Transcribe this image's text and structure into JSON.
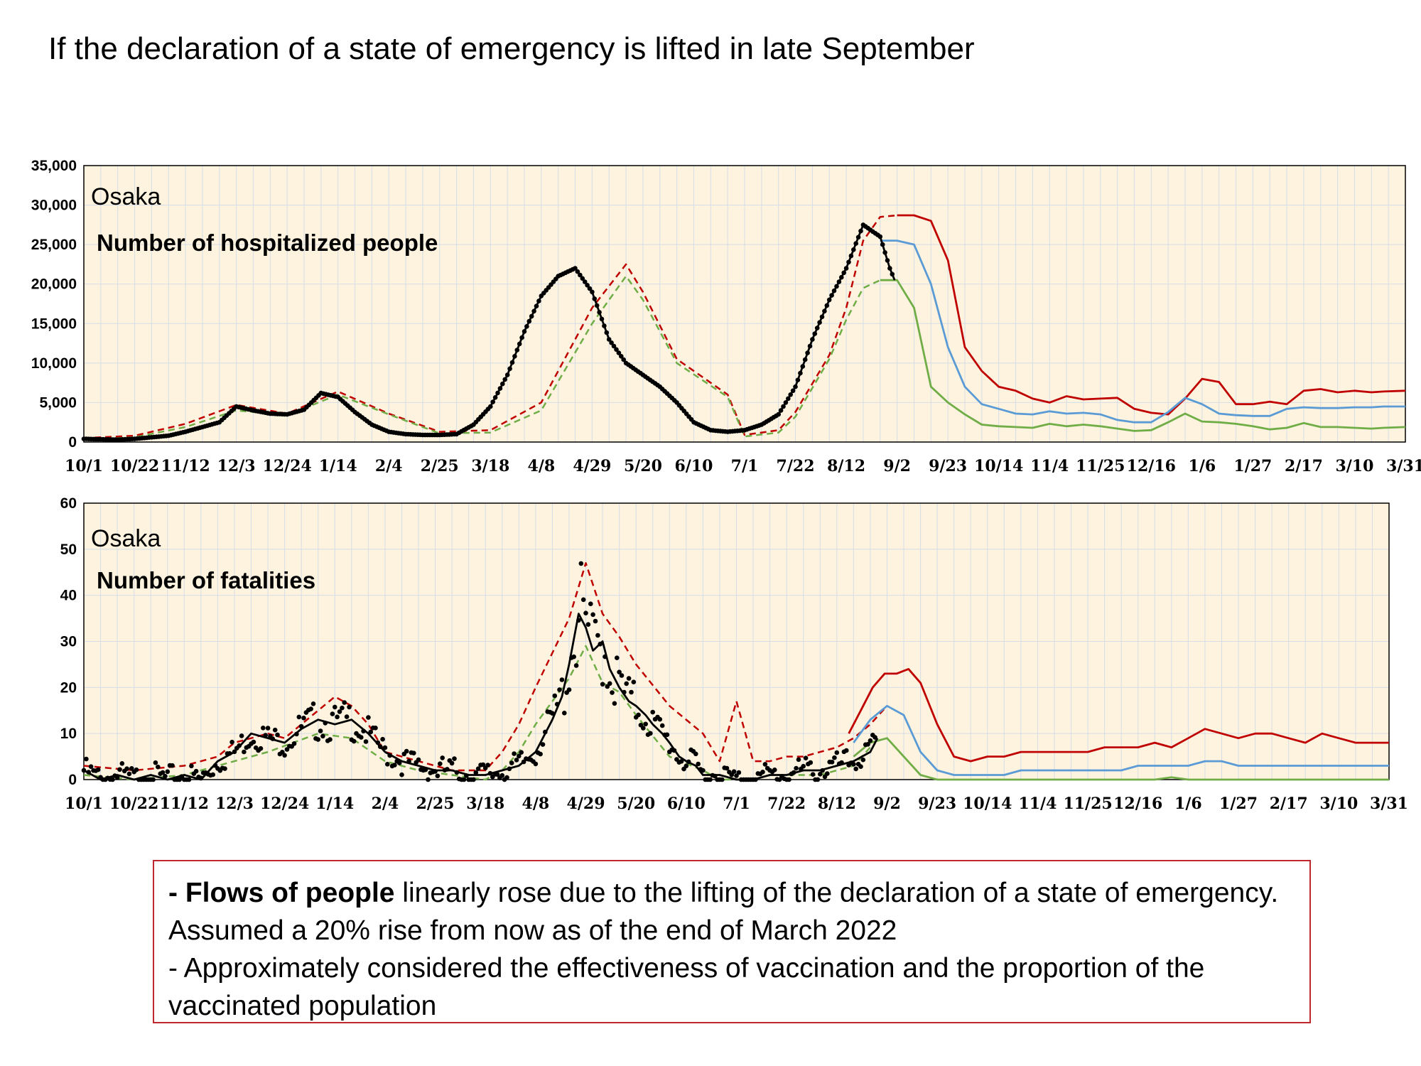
{
  "title": "If the declaration of a state of emergency is lifted in late September",
  "colors": {
    "red": "#c00000",
    "blue": "#5b9bd5",
    "green": "#70ad47",
    "black": "#000000",
    "plot_bg": "#fdf3df",
    "grid": "#d6dde6"
  },
  "chart_data": [
    {
      "type": "line",
      "region": "Osaka",
      "subtitle": "Number of hospitalized people",
      "ylim": [
        0,
        35000
      ],
      "yticks": [
        "35,000",
        "30,000",
        "25,000",
        "20,000",
        "15,000",
        "10,000",
        "5,000",
        "0"
      ],
      "xticks": [
        "10/1",
        "10/22",
        "11/12",
        "12/3",
        "12/24",
        "1/14",
        "2/4",
        "2/25",
        "3/18",
        "4/8",
        "4/29",
        "5/20",
        "6/10",
        "7/1",
        "7/22",
        "8/12",
        "9/2",
        "9/23",
        "10/14",
        "11/4",
        "11/25",
        "12/16",
        "1/6",
        "1/27",
        "2/17",
        "3/10",
        "3/31"
      ],
      "grid": true,
      "series": [
        {
          "style": "red-dashed",
          "days": [
            0,
            21,
            42,
            63,
            84,
            105,
            126,
            147,
            168,
            189,
            210,
            224,
            231,
            245,
            266,
            273,
            287,
            294,
            308,
            315,
            322,
            329,
            336
          ],
          "values": [
            500,
            800,
            2300,
            4700,
            3600,
            6400,
            3600,
            1300,
            1500,
            5000,
            17000,
            22500,
            19000,
            10500,
            6000,
            900,
            1500,
            3800,
            11000,
            17000,
            25500,
            28500,
            28700
          ]
        },
        {
          "style": "green-dashed",
          "days": [
            0,
            21,
            42,
            63,
            84,
            105,
            126,
            147,
            168,
            189,
            210,
            224,
            231,
            245,
            266,
            273,
            287,
            294,
            308,
            315,
            322,
            329,
            336
          ],
          "values": [
            300,
            600,
            1900,
            4000,
            3400,
            6000,
            3500,
            1100,
            1200,
            4000,
            15000,
            21000,
            18000,
            10000,
            5700,
            700,
            1200,
            3200,
            10500,
            15500,
            19500,
            20500,
            20500
          ]
        },
        {
          "style": "red-solid",
          "days": [
            336,
            343,
            350,
            357,
            364,
            371,
            378,
            385,
            392,
            399,
            406,
            413,
            420,
            427,
            434,
            441,
            448,
            455,
            462,
            469,
            476,
            483,
            490,
            497,
            504,
            511,
            518,
            525,
            532,
            537,
            546
          ],
          "values": [
            28700,
            28700,
            28000,
            23000,
            12000,
            9000,
            7000,
            6500,
            5500,
            5000,
            5800,
            5400,
            5500,
            5600,
            4200,
            3700,
            3500,
            5500,
            8000,
            7600,
            4800,
            4800,
            5100,
            4800,
            6500,
            6700,
            6300,
            6500,
            6300,
            6400,
            6500
          ]
        },
        {
          "style": "blue-solid",
          "days": [
            329,
            336,
            343,
            350,
            357,
            364,
            371,
            378,
            385,
            392,
            399,
            406,
            413,
            420,
            427,
            434,
            441,
            448,
            455,
            462,
            469,
            476,
            483,
            490,
            497,
            504,
            511,
            518,
            525,
            532,
            537,
            546
          ],
          "values": [
            25500,
            25500,
            25000,
            20000,
            12000,
            7000,
            4800,
            4200,
            3600,
            3500,
            3900,
            3600,
            3700,
            3500,
            2800,
            2500,
            2500,
            3800,
            5600,
            4800,
            3600,
            3400,
            3300,
            3300,
            4200,
            4400,
            4300,
            4300,
            4400,
            4400,
            4500,
            4500
          ]
        },
        {
          "style": "green-solid",
          "days": [
            329,
            336,
            343,
            350,
            357,
            364,
            371,
            378,
            385,
            392,
            399,
            406,
            413,
            420,
            427,
            434,
            441,
            448,
            455,
            462,
            469,
            476,
            483,
            490,
            497,
            504,
            511,
            518,
            525,
            532,
            537,
            546
          ],
          "values": [
            20500,
            20500,
            17000,
            7000,
            5000,
            3500,
            2200,
            2000,
            1900,
            1800,
            2300,
            2000,
            2200,
            2000,
            1700,
            1400,
            1500,
            2500,
            3600,
            2600,
            2500,
            2300,
            2000,
            1600,
            1800,
            2400,
            1900,
            1900,
            1800,
            1700,
            1800,
            1900
          ]
        },
        {
          "style": "black-solid",
          "days": [
            0,
            14,
            21,
            35,
            42,
            56,
            63,
            70,
            77,
            84,
            91,
            98,
            105,
            112,
            119,
            126,
            133,
            140,
            147,
            154,
            161,
            168,
            175,
            182,
            189,
            196,
            203,
            210,
            217,
            224,
            231,
            238,
            245,
            252,
            259,
            266,
            273,
            280,
            287,
            294,
            301,
            308,
            315,
            322,
            329,
            331,
            333,
            335
          ],
          "values": [
            400,
            300,
            400,
            800,
            1300,
            2500,
            4500,
            4000,
            3600,
            3500,
            4100,
            6200,
            5700,
            3800,
            2200,
            1300,
            1000,
            900,
            900,
            1000,
            2200,
            4500,
            8500,
            14000,
            18500,
            21000,
            22000,
            19000,
            13000,
            10000,
            8500,
            7000,
            5000,
            2500,
            1500,
            1300,
            1500,
            2200,
            3500,
            7000,
            13000,
            18000,
            22000,
            27500,
            26000,
            24000,
            22000,
            20500
          ]
        }
      ]
    },
    {
      "type": "line",
      "region": "Osaka",
      "subtitle": "Number of fatalities",
      "ylim": [
        0,
        60
      ],
      "yticks": [
        "60",
        "50",
        "40",
        "30",
        "20",
        "10",
        "0"
      ],
      "xticks": [
        "10/1",
        "10/22",
        "11/12",
        "12/3",
        "12/24",
        "1/14",
        "2/4",
        "2/25",
        "3/18",
        "4/8",
        "4/29",
        "5/20",
        "6/10",
        "7/1",
        "7/22",
        "8/12",
        "9/2",
        "9/23",
        "10/14",
        "11/4",
        "11/25",
        "12/16",
        "1/6",
        "1/27",
        "2/17",
        "3/10",
        "3/31"
      ],
      "grid": true,
      "series": [
        {
          "style": "red-dashed",
          "days": [
            0,
            21,
            42,
            56,
            63,
            70,
            77,
            84,
            91,
            98,
            105,
            112,
            119,
            126,
            140,
            154,
            168,
            175,
            182,
            189,
            203,
            210,
            217,
            224,
            231,
            245,
            259,
            266,
            273,
            280,
            287,
            294,
            301,
            308,
            315,
            322,
            329,
            336
          ],
          "values": [
            3,
            2,
            3,
            5,
            8,
            9,
            10,
            9,
            12,
            15,
            18,
            16,
            12,
            6,
            4,
            2,
            2,
            6,
            12,
            20,
            35,
            47,
            36,
            31,
            25,
            16,
            10,
            4,
            17,
            4,
            4,
            5,
            5,
            6,
            7,
            9,
            12,
            16
          ]
        },
        {
          "style": "green-dashed",
          "days": [
            0,
            21,
            42,
            63,
            77,
            98,
            112,
            126,
            140,
            154,
            168,
            175,
            182,
            189,
            203,
            210,
            217,
            224,
            231,
            245,
            259,
            266,
            273,
            280,
            287,
            294,
            301,
            308,
            315,
            322,
            329
          ],
          "values": [
            1,
            0,
            1,
            4,
            6,
            10,
            9,
            4,
            2,
            1,
            0,
            2,
            6,
            12,
            22,
            29,
            21,
            19,
            14,
            5,
            2,
            0,
            0,
            0,
            1,
            1,
            1,
            1,
            2,
            3,
            7
          ]
        },
        {
          "style": "red-solid",
          "days": [
            320,
            325,
            330,
            335,
            340,
            345,
            350,
            357,
            364,
            371,
            378,
            385,
            392,
            399,
            406,
            413,
            420,
            427,
            434,
            441,
            448,
            455,
            462,
            469,
            476,
            483,
            490,
            497,
            504,
            511,
            518,
            525,
            532,
            537,
            546
          ],
          "values": [
            10,
            15,
            20,
            23,
            23,
            24,
            21,
            12,
            5,
            4,
            5,
            5,
            6,
            6,
            6,
            6,
            6,
            7,
            7,
            7,
            8,
            7,
            9,
            11,
            10,
            9,
            10,
            10,
            9,
            8,
            10,
            9,
            8,
            8,
            8
          ]
        },
        {
          "style": "blue-solid",
          "days": [
            322,
            329,
            336,
            343,
            350,
            357,
            364,
            371,
            378,
            385,
            392,
            399,
            406,
            413,
            420,
            427,
            434,
            441,
            448,
            455,
            462,
            469,
            476,
            483,
            490,
            497,
            504,
            511,
            518,
            525,
            532,
            537,
            546
          ],
          "values": [
            8,
            13,
            16,
            14,
            6,
            2,
            1,
            1,
            1,
            1,
            2,
            2,
            2,
            2,
            2,
            2,
            2,
            3,
            3,
            3,
            3,
            4,
            4,
            3,
            3,
            3,
            3,
            3,
            3,
            3,
            3,
            3,
            3
          ]
        },
        {
          "style": "green-solid",
          "days": [
            322,
            329,
            336,
            343,
            350,
            357,
            364,
            371,
            378,
            385,
            392,
            399,
            406,
            413,
            420,
            427,
            434,
            441,
            448,
            455,
            462,
            469,
            476,
            483,
            490,
            497,
            504,
            511,
            518,
            525,
            532,
            537,
            546
          ],
          "values": [
            5,
            8,
            9,
            5,
            1,
            0,
            0,
            0,
            0,
            0,
            0,
            0,
            0,
            0,
            0,
            0,
            0,
            0,
            0,
            0.5,
            0,
            0,
            0,
            0,
            0,
            0,
            0,
            0,
            0,
            0,
            0,
            0,
            0
          ]
        },
        {
          "style": "black-solid",
          "days": [
            0,
            7,
            14,
            21,
            28,
            35,
            42,
            49,
            56,
            63,
            70,
            77,
            84,
            91,
            98,
            105,
            112,
            119,
            126,
            133,
            140,
            147,
            154,
            161,
            168,
            175,
            182,
            189,
            196,
            200,
            203,
            207,
            210,
            213,
            217,
            220,
            224,
            228,
            231,
            235,
            238,
            242,
            245,
            249,
            252,
            256,
            259,
            266,
            273,
            280,
            287,
            294,
            301,
            308,
            315,
            322,
            329,
            332
          ],
          "values": [
            2,
            0,
            1,
            0,
            1,
            0,
            1,
            0,
            4,
            6,
            10,
            9,
            8,
            11,
            13,
            12,
            13,
            10,
            6,
            4,
            3,
            2,
            2,
            1,
            1,
            2,
            3,
            6,
            13,
            18,
            25,
            36,
            33,
            28,
            30,
            24,
            20,
            17,
            16,
            14,
            12,
            10,
            8,
            5,
            4,
            3,
            1,
            1,
            0,
            0,
            1,
            1,
            2,
            2,
            3,
            4,
            6,
            9
          ]
        }
      ],
      "points_style": "black-dots"
    }
  ],
  "notes": {
    "line1_bold": "- Flows of people",
    "line1_rest": " linearly rose due to the lifting of the declaration of a state of emergency. Assumed a 20% rise from now as of the end of March 2022",
    "line2": "- Approximately considered the effectiveness of vaccination and the proportion of the vaccinated population"
  }
}
